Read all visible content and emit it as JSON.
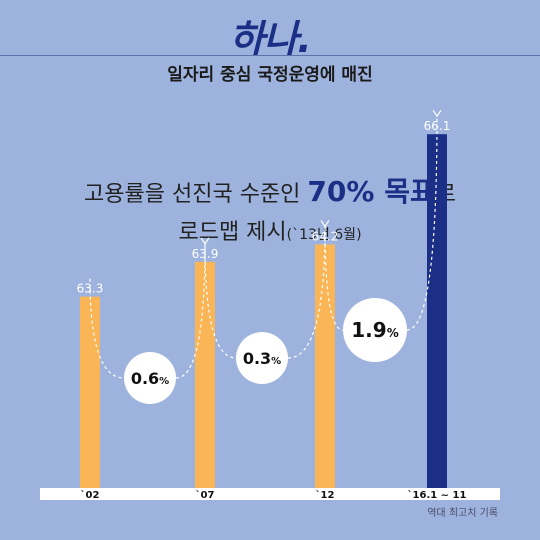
{
  "header": {
    "title": "하나.",
    "subtitle": "일자리 중심 국정운영에 매진"
  },
  "headline": {
    "line1_prefix": "고용률을 선진국 수준인 ",
    "line1_highlight": "70% 목표",
    "line1_suffix": "로",
    "line2_main": "로드맵 제시",
    "line2_note": "(`13년 6월)"
  },
  "colors": {
    "background": "#9db3dd",
    "bar_normal": "#f9b556",
    "bar_highlight": "#1c2f86",
    "baseline": "#ffffff"
  },
  "chart_data": {
    "type": "bar",
    "categories": [
      "`02",
      "`07",
      "`12",
      "`16.1 ~ 11"
    ],
    "values": [
      63.3,
      63.9,
      64.2,
      66.1
    ],
    "value_labels": [
      "63.3",
      "63.9",
      "64.2",
      "66.1"
    ],
    "highlight_index": 3,
    "ylim": [
      60,
      68
    ],
    "annotations": [
      {
        "from": 0,
        "to": 1,
        "number": "0.6",
        "unit": "%"
      },
      {
        "from": 1,
        "to": 2,
        "number": "0.3",
        "unit": "%"
      },
      {
        "from": 2,
        "to": 3,
        "number": "1.9",
        "unit": "%"
      }
    ],
    "footnote": "역대 최고치 기록"
  }
}
